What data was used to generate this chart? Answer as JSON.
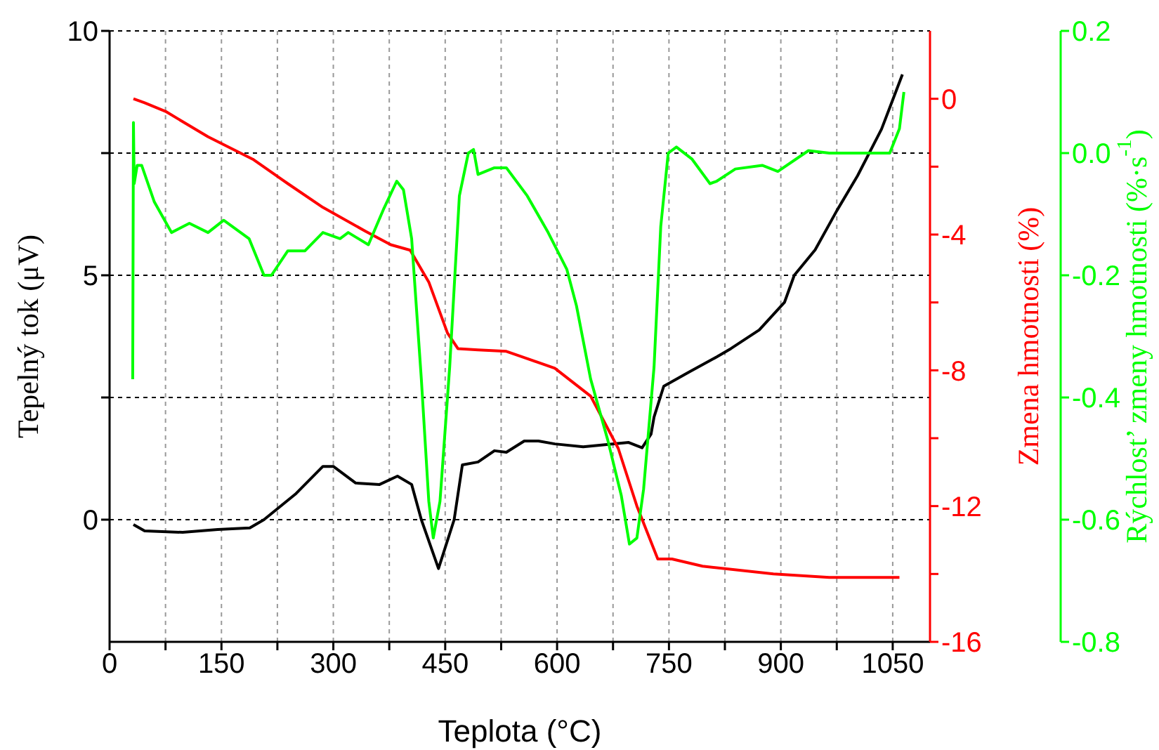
{
  "chart_data": {
    "type": "line",
    "xlabel": "Teplota (°C)",
    "ylabel": "Tepelný tok (μV)",
    "y2label": "Zmena hmotnosti (%)",
    "y3label": "Rýchlost’ zmeny hmotnosti (%·s$^{-1}$)",
    "xlim": [
      0,
      1100
    ],
    "xticks": [
      0,
      {
        "value": 75,
        "label": null
      },
      150,
      {
        "value": 225,
        "label": null
      },
      300,
      {
        "value": 375,
        "label": null
      },
      450,
      {
        "value": 525,
        "label": null
      },
      600,
      {
        "value": 675,
        "label": null
      },
      750,
      {
        "value": 825,
        "label": null
      },
      900,
      {
        "value": 975,
        "label": null
      },
      1050
    ],
    "ylim": [
      -2.5,
      10
    ],
    "yticks": [
      0,
      {
        "value": 2.5,
        "label": null
      },
      5,
      {
        "value": 7.5,
        "label": null
      },
      10
    ],
    "y2lim": [
      -16,
      2
    ],
    "y2ticks": [
      -16,
      {
        "value": -14,
        "label": null
      },
      -12,
      {
        "value": -10,
        "label": null
      },
      -8,
      {
        "value": -6,
        "label": null
      },
      -4,
      {
        "value": -2,
        "label": null
      },
      0
    ],
    "y3lim": [
      -0.8,
      0.2
    ],
    "y3ticks": [
      -0.8,
      -0.6,
      -0.4,
      -0.2,
      {
        "value": 0,
        "label": "0.0"
      },
      0.2
    ],
    "grid": true,
    "marker": "none",
    "line_style": "solid",
    "series": [
      {
        "color": "#000000",
        "x": [
          32,
          47,
          98,
          145,
          188,
          207,
          249,
          286,
          300,
          330,
          362,
          386,
          405,
          418,
          441,
          462,
          473,
          494,
          516,
          532,
          556,
          575,
          597,
          635,
          696,
          714,
          726,
          730,
          743,
          777,
          814,
          833,
          871,
          905,
          918,
          946,
          975,
          1003,
          1035,
          1063
        ],
        "values": [
          -0.1,
          -0.23,
          -0.26,
          -0.2,
          -0.17,
          0,
          0.52,
          1.09,
          1.09,
          0.75,
          0.72,
          0.89,
          0.72,
          0,
          -1.0,
          0,
          1.12,
          1.18,
          1.41,
          1.38,
          1.61,
          1.61,
          1.55,
          1.49,
          1.58,
          1.47,
          1.75,
          2.1,
          2.73,
          3.02,
          3.33,
          3.5,
          3.88,
          4.45,
          5.0,
          5.52,
          6.32,
          7.04,
          7.99,
          9.11
        ]
      },
      {
        "color": "#ff0000",
        "axis": "y2",
        "x": [
          32,
          47,
          75,
          132,
          192,
          239,
          286,
          343,
          377,
          403,
          428,
          453,
          467,
          494,
          532,
          597,
          645,
          682,
          707,
          735,
          754,
          795,
          890,
          965,
          1059
        ],
        "values": [
          0,
          -0.12,
          -0.37,
          -1.12,
          -1.78,
          -2.5,
          -3.2,
          -3.9,
          -4.3,
          -4.46,
          -5.4,
          -6.9,
          -7.36,
          -7.4,
          -7.44,
          -7.94,
          -8.76,
          -10.3,
          -12,
          -13.56,
          -13.56,
          -13.77,
          -14.0,
          -14.1,
          -14.1
        ]
      },
      {
        "color": "#00ff00",
        "axis": "y3",
        "x": [
          31,
          32,
          33,
          37,
          43,
          60,
          83,
          107,
          132,
          153,
          187,
          207,
          217,
          239,
          262,
          286,
          309,
          320,
          347,
          368,
          385,
          394,
          405,
          418,
          428,
          434,
          443,
          456,
          469,
          481,
          488,
          494,
          516,
          532,
          560,
          588,
          613,
          626,
          645,
          668,
          686,
          697,
          707,
          716,
          730,
          739,
          749,
          760,
          781,
          805,
          814,
          839,
          875,
          896,
          937,
          965,
          1046,
          1059,
          1065
        ],
        "values": [
          -0.37,
          0.05,
          -0.05,
          -0.02,
          -0.02,
          -0.08,
          -0.13,
          -0.115,
          -0.13,
          -0.11,
          -0.14,
          -0.2,
          -0.2,
          -0.16,
          -0.16,
          -0.13,
          -0.14,
          -0.13,
          -0.15,
          -0.09,
          -0.046,
          -0.06,
          -0.14,
          -0.37,
          -0.57,
          -0.63,
          -0.57,
          -0.35,
          -0.07,
          0,
          0.006,
          -0.035,
          -0.024,
          -0.024,
          -0.07,
          -0.13,
          -0.19,
          -0.25,
          -0.37,
          -0.47,
          -0.56,
          -0.64,
          -0.63,
          -0.55,
          -0.35,
          -0.12,
          0,
          0.01,
          -0.01,
          -0.05,
          -0.046,
          -0.026,
          -0.02,
          -0.03,
          0.004,
          0,
          0,
          0.04,
          0.1
        ]
      }
    ]
  }
}
